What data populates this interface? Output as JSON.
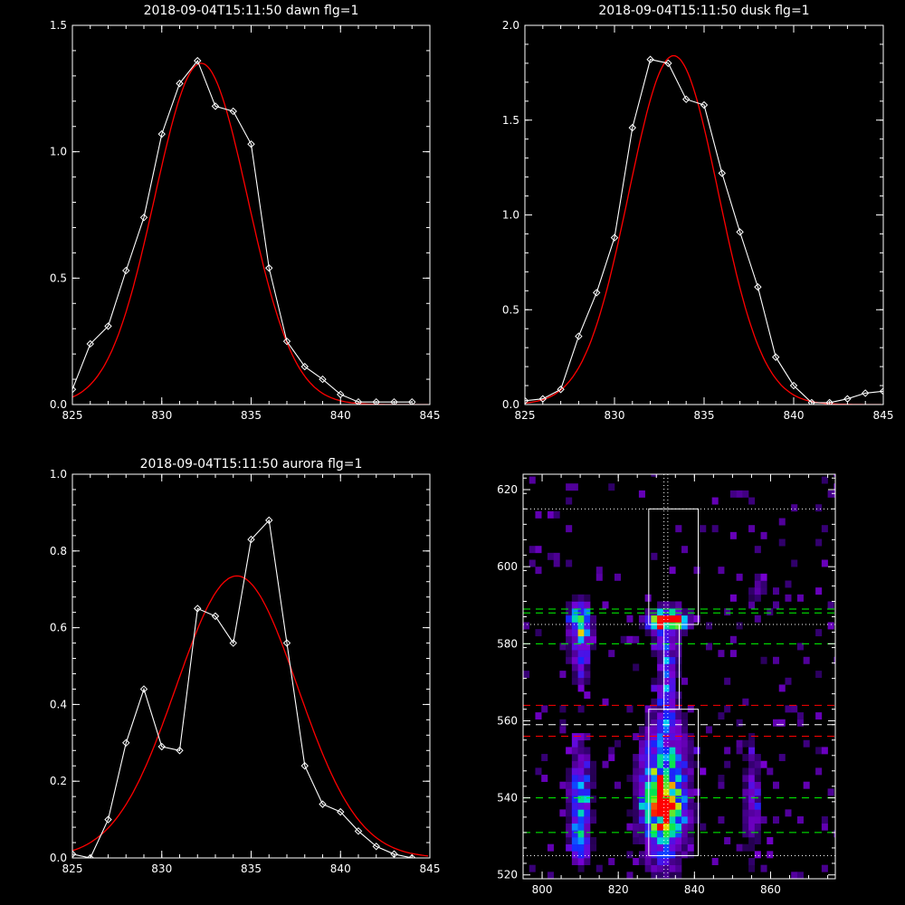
{
  "chart_data": [
    {
      "id": "dawn",
      "type": "line",
      "title": "2018-09-04T15:11:50 dawn flg=1",
      "xlim": [
        825,
        845
      ],
      "ylim": [
        0,
        1.5
      ],
      "xticks": [
        825,
        830,
        835,
        840,
        845
      ],
      "yticks": [
        0,
        0.5,
        1.0,
        1.5
      ],
      "xtick_labels": [
        "825",
        "830",
        "835",
        "840",
        "845"
      ],
      "ytick_labels": [
        "0.0",
        "0.5",
        "1.0",
        "1.5"
      ],
      "series": [
        {
          "kind": "data",
          "color": "#ffffff",
          "marker": "diamond",
          "x": [
            825,
            826,
            827,
            828,
            829,
            830,
            831,
            832,
            833,
            834,
            835,
            836,
            837,
            838,
            839,
            840,
            841,
            842,
            843,
            844
          ],
          "y": [
            0.06,
            0.24,
            0.31,
            0.53,
            0.74,
            1.07,
            1.27,
            1.36,
            1.18,
            1.16,
            1.03,
            0.54,
            0.25,
            0.15,
            0.1,
            0.04,
            0.01,
            0.01,
            0.01,
            0.01
          ]
        },
        {
          "kind": "fit",
          "color": "#ff0000",
          "amplitude": 1.35,
          "center": 832.2,
          "sigma": 2.6
        }
      ]
    },
    {
      "id": "dusk",
      "type": "line",
      "title": "2018-09-04T15:11:50 dusk flg=1",
      "xlim": [
        825,
        845
      ],
      "ylim": [
        0,
        2.0
      ],
      "xticks": [
        825,
        830,
        835,
        840,
        845
      ],
      "yticks": [
        0,
        0.5,
        1.0,
        1.5,
        2.0
      ],
      "xtick_labels": [
        "825",
        "830",
        "835",
        "840",
        "845"
      ],
      "ytick_labels": [
        "0.0",
        "0.5",
        "1.0",
        "1.5",
        "2.0"
      ],
      "series": [
        {
          "kind": "data",
          "color": "#ffffff",
          "marker": "diamond",
          "x": [
            825,
            826,
            827,
            828,
            829,
            830,
            831,
            832,
            833,
            834,
            835,
            836,
            837,
            838,
            839,
            840,
            841,
            842,
            843,
            844,
            845
          ],
          "y": [
            0.02,
            0.03,
            0.08,
            0.36,
            0.59,
            0.88,
            1.46,
            1.82,
            1.8,
            1.61,
            1.58,
            1.22,
            0.91,
            0.62,
            0.25,
            0.1,
            0.01,
            0.01,
            0.03,
            0.06,
            0.07
          ]
        },
        {
          "kind": "fit",
          "color": "#ff0000",
          "amplitude": 1.84,
          "center": 833.3,
          "sigma": 2.5
        }
      ]
    },
    {
      "id": "aurora",
      "type": "line",
      "title": "2018-09-04T15:11:50 aurora flg=1",
      "xlim": [
        825,
        845
      ],
      "ylim": [
        0,
        1.0
      ],
      "xticks": [
        825,
        830,
        835,
        840,
        845
      ],
      "yticks": [
        0,
        0.2,
        0.4,
        0.6,
        0.8,
        1.0
      ],
      "xtick_labels": [
        "825",
        "830",
        "835",
        "840",
        "845"
      ],
      "ytick_labels": [
        "0.0",
        "0.2",
        "0.4",
        "0.6",
        "0.8",
        "1.0"
      ],
      "series": [
        {
          "kind": "data",
          "color": "#ffffff",
          "marker": "diamond",
          "x": [
            825,
            826,
            827,
            828,
            829,
            830,
            831,
            832,
            833,
            834,
            835,
            836,
            837,
            838,
            839,
            840,
            841,
            842,
            843,
            844
          ],
          "y": [
            0.01,
            0.0,
            0.1,
            0.3,
            0.44,
            0.29,
            0.28,
            0.65,
            0.63,
            0.56,
            0.83,
            0.88,
            0.56,
            0.24,
            0.14,
            0.12,
            0.07,
            0.03,
            0.01,
            0.0
          ]
        },
        {
          "kind": "fit",
          "color": "#ff0000",
          "amplitude": 0.735,
          "center": 834.2,
          "sigma": 3.4
        }
      ]
    },
    {
      "id": "image",
      "type": "heatmap",
      "title": "",
      "xlim": [
        795,
        877
      ],
      "ylim": [
        519,
        624
      ],
      "xticks": [
        800,
        820,
        840,
        860
      ],
      "yticks": [
        520,
        540,
        560,
        580,
        600,
        620
      ],
      "xtick_labels": [
        "800",
        "820",
        "840",
        "860"
      ],
      "ytick_labels": [
        "520",
        "540",
        "560",
        "580",
        "600",
        "620"
      ],
      "blobs": [
        {
          "x": 832,
          "y": 541,
          "sx": 4.0,
          "sy": 11,
          "amp": 0.78
        },
        {
          "x": 833,
          "y": 535,
          "sx": 2.5,
          "sy": 4,
          "amp": 0.35
        },
        {
          "x": 833,
          "y": 586,
          "sx": 3.5,
          "sy": 1.6,
          "amp": 1.0
        },
        {
          "x": 833,
          "y": 579,
          "sx": 2.0,
          "sy": 7,
          "amp": 0.3
        },
        {
          "x": 833,
          "y": 565,
          "sx": 1.6,
          "sy": 5,
          "amp": 0.22
        },
        {
          "x": 810,
          "y": 586,
          "sx": 1.8,
          "sy": 3,
          "amp": 0.65
        },
        {
          "x": 810,
          "y": 578,
          "sx": 1.8,
          "sy": 5,
          "amp": 0.35
        },
        {
          "x": 810,
          "y": 539,
          "sx": 2.0,
          "sy": 9,
          "amp": 0.45
        },
        {
          "x": 810,
          "y": 528,
          "sx": 1.6,
          "sy": 3,
          "amp": 0.3
        },
        {
          "x": 855,
          "y": 540,
          "sx": 1.6,
          "sy": 11,
          "amp": 0.22
        },
        {
          "x": 857,
          "y": 594,
          "sx": 1.6,
          "sy": 3,
          "amp": 0.15
        }
      ],
      "boxes": [
        {
          "x0": 828,
          "x1": 841,
          "y0": 585,
          "y1": 615,
          "color": "#ffffff"
        },
        {
          "x0": 828,
          "x1": 841,
          "y0": 525,
          "y1": 563,
          "color": "#ffffff"
        }
      ],
      "vlines": [
        {
          "x": 832,
          "color": "#ffffff",
          "style": "dotted"
        },
        {
          "x": 833,
          "color": "#ffffff",
          "style": "dotted"
        }
      ],
      "hlines": [
        {
          "y": 615,
          "color": "#ffffff",
          "style": "dotted"
        },
        {
          "y": 589,
          "color": "#00ff00",
          "style": "dashed"
        },
        {
          "y": 588,
          "color": "#00ff00",
          "style": "dashed"
        },
        {
          "y": 585,
          "color": "#ffffff",
          "style": "dotted"
        },
        {
          "y": 580,
          "color": "#00ff00",
          "style": "dashed"
        },
        {
          "y": 564,
          "color": "#ff0000",
          "style": "dashed"
        },
        {
          "y": 559,
          "color": "#ffffff",
          "style": "dashed"
        },
        {
          "y": 556,
          "color": "#ff0000",
          "style": "dashed"
        },
        {
          "y": 540,
          "color": "#00ff00",
          "style": "dashed"
        },
        {
          "y": 531,
          "color": "#00ff00",
          "style": "dashed"
        },
        {
          "y": 525,
          "color": "#ffffff",
          "style": "dotted"
        }
      ]
    }
  ]
}
